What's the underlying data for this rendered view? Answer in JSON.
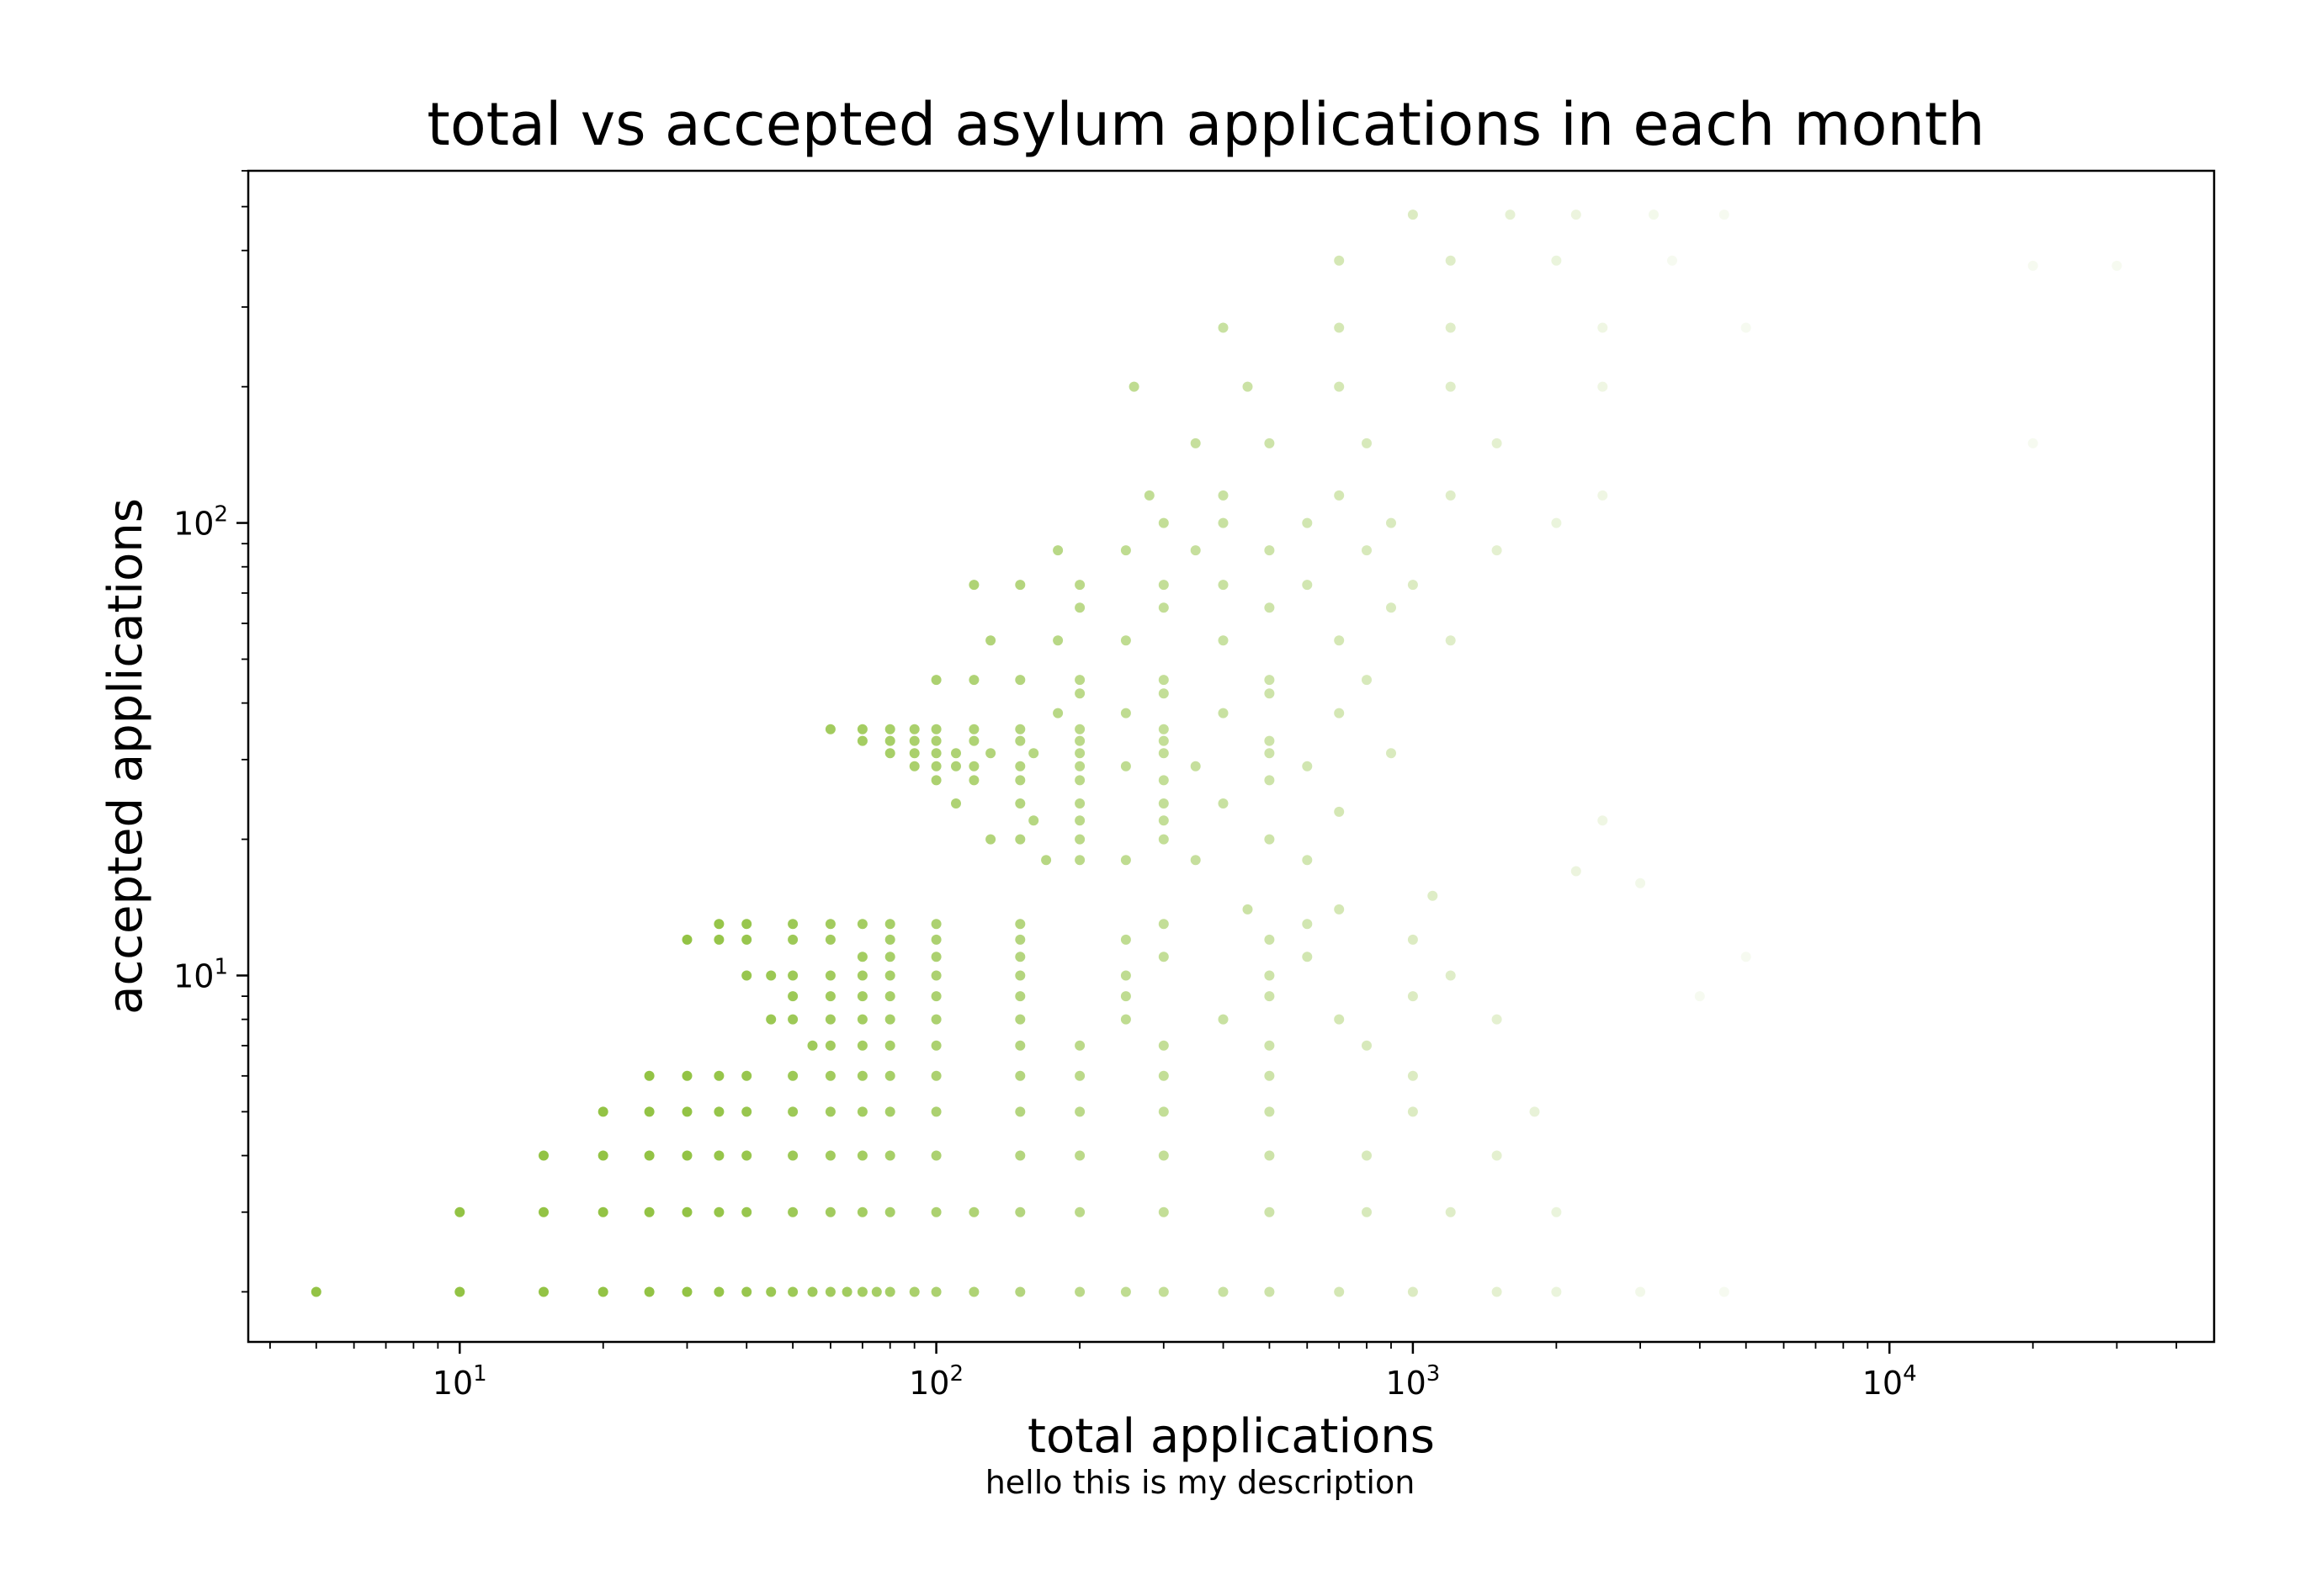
{
  "chart_data": {
    "type": "scatter",
    "title": "total vs accepted asylum applications in each month",
    "xlabel": "total applications",
    "ylabel": "accepted applications",
    "caption": "hello this is my description",
    "xscale": "log",
    "yscale": "log",
    "xlim": [
      3.6,
      48000
    ],
    "ylim": [
      1.55,
      600
    ],
    "xticks": [
      {
        "base": "10",
        "exp": "1",
        "value": 10
      },
      {
        "base": "10",
        "exp": "2",
        "value": 100
      },
      {
        "base": "10",
        "exp": "3",
        "value": 1000
      },
      {
        "base": "10",
        "exp": "4",
        "value": 10000
      }
    ],
    "yticks": [
      {
        "base": "10",
        "exp": "1",
        "value": 10
      },
      {
        "base": "10",
        "exp": "2",
        "value": 100
      }
    ],
    "grid": false,
    "legend": "none",
    "colors": {
      "marker": "#8dc03b",
      "axis": "#000000"
    },
    "point_opacity": "high for low totals, fading toward very faint for large totals",
    "series": [
      {
        "points": [
          [
            5,
            2
          ],
          [
            10,
            2
          ],
          [
            15,
            2
          ],
          [
            20,
            2
          ],
          [
            25,
            2
          ],
          [
            30,
            2
          ],
          [
            35,
            2
          ],
          [
            40,
            2
          ],
          [
            45,
            2
          ],
          [
            50,
            2
          ],
          [
            55,
            2
          ],
          [
            60,
            2
          ],
          [
            65,
            2
          ],
          [
            70,
            2
          ],
          [
            75,
            2
          ],
          [
            80,
            2
          ],
          [
            90,
            2
          ],
          [
            100,
            2
          ],
          [
            120,
            2
          ],
          [
            150,
            2
          ],
          [
            200,
            2
          ],
          [
            250,
            2
          ],
          [
            300,
            2
          ],
          [
            400,
            2
          ],
          [
            500,
            2
          ],
          [
            700,
            2
          ],
          [
            1000,
            2
          ],
          [
            1500,
            2
          ],
          [
            2000,
            2
          ],
          [
            3000,
            2
          ],
          [
            4500,
            2
          ],
          [
            10,
            3
          ],
          [
            15,
            3
          ],
          [
            20,
            3
          ],
          [
            25,
            3
          ],
          [
            30,
            3
          ],
          [
            35,
            3
          ],
          [
            40,
            3
          ],
          [
            50,
            3
          ],
          [
            60,
            3
          ],
          [
            70,
            3
          ],
          [
            80,
            3
          ],
          [
            100,
            3
          ],
          [
            120,
            3
          ],
          [
            150,
            3
          ],
          [
            200,
            3
          ],
          [
            300,
            3
          ],
          [
            500,
            3
          ],
          [
            800,
            3
          ],
          [
            1200,
            3
          ],
          [
            2000,
            3
          ],
          [
            15,
            4
          ],
          [
            20,
            4
          ],
          [
            25,
            4
          ],
          [
            30,
            4
          ],
          [
            35,
            4
          ],
          [
            40,
            4
          ],
          [
            50,
            4
          ],
          [
            60,
            4
          ],
          [
            70,
            4
          ],
          [
            80,
            4
          ],
          [
            100,
            4
          ],
          [
            150,
            4
          ],
          [
            200,
            4
          ],
          [
            300,
            4
          ],
          [
            500,
            4
          ],
          [
            800,
            4
          ],
          [
            1500,
            4
          ],
          [
            20,
            5
          ],
          [
            25,
            5
          ],
          [
            30,
            5
          ],
          [
            35,
            5
          ],
          [
            40,
            5
          ],
          [
            50,
            5
          ],
          [
            60,
            5
          ],
          [
            70,
            5
          ],
          [
            80,
            5
          ],
          [
            100,
            5
          ],
          [
            150,
            5
          ],
          [
            200,
            5
          ],
          [
            300,
            5
          ],
          [
            500,
            5
          ],
          [
            1000,
            5
          ],
          [
            1800,
            5
          ],
          [
            25,
            6
          ],
          [
            30,
            6
          ],
          [
            35,
            6
          ],
          [
            40,
            6
          ],
          [
            50,
            6
          ],
          [
            60,
            6
          ],
          [
            70,
            6
          ],
          [
            80,
            6
          ],
          [
            100,
            6
          ],
          [
            150,
            6
          ],
          [
            200,
            6
          ],
          [
            300,
            6
          ],
          [
            500,
            6
          ],
          [
            1000,
            6
          ],
          [
            55,
            7
          ],
          [
            60,
            7
          ],
          [
            70,
            7
          ],
          [
            80,
            7
          ],
          [
            100,
            7
          ],
          [
            150,
            7
          ],
          [
            200,
            7
          ],
          [
            300,
            7
          ],
          [
            500,
            7
          ],
          [
            800,
            7
          ],
          [
            45,
            8
          ],
          [
            50,
            8
          ],
          [
            60,
            8
          ],
          [
            70,
            8
          ],
          [
            80,
            8
          ],
          [
            100,
            8
          ],
          [
            150,
            8
          ],
          [
            250,
            8
          ],
          [
            400,
            8
          ],
          [
            700,
            8
          ],
          [
            1500,
            8
          ],
          [
            50,
            9
          ],
          [
            60,
            9
          ],
          [
            70,
            9
          ],
          [
            80,
            9
          ],
          [
            100,
            9
          ],
          [
            150,
            9
          ],
          [
            250,
            9
          ],
          [
            500,
            9
          ],
          [
            1000,
            9
          ],
          [
            4000,
            9
          ],
          [
            40,
            10
          ],
          [
            45,
            10
          ],
          [
            50,
            10
          ],
          [
            60,
            10
          ],
          [
            70,
            10
          ],
          [
            80,
            10
          ],
          [
            100,
            10
          ],
          [
            150,
            10
          ],
          [
            250,
            10
          ],
          [
            500,
            10
          ],
          [
            1200,
            10
          ],
          [
            70,
            11
          ],
          [
            80,
            11
          ],
          [
            100,
            11
          ],
          [
            150,
            11
          ],
          [
            300,
            11
          ],
          [
            600,
            11
          ],
          [
            5000,
            11
          ],
          [
            30,
            12
          ],
          [
            35,
            12
          ],
          [
            40,
            12
          ],
          [
            50,
            12
          ],
          [
            60,
            12
          ],
          [
            80,
            12
          ],
          [
            100,
            12
          ],
          [
            150,
            12
          ],
          [
            250,
            12
          ],
          [
            500,
            12
          ],
          [
            1000,
            12
          ],
          [
            35,
            13
          ],
          [
            40,
            13
          ],
          [
            50,
            13
          ],
          [
            60,
            13
          ],
          [
            70,
            13
          ],
          [
            80,
            13
          ],
          [
            100,
            13
          ],
          [
            150,
            13
          ],
          [
            300,
            13
          ],
          [
            600,
            13
          ],
          [
            450,
            14
          ],
          [
            700,
            14
          ],
          [
            1100,
            15
          ],
          [
            2200,
            17
          ],
          [
            3000,
            16
          ],
          [
            170,
            18
          ],
          [
            200,
            18
          ],
          [
            250,
            18
          ],
          [
            350,
            18
          ],
          [
            600,
            18
          ],
          [
            130,
            20
          ],
          [
            150,
            20
          ],
          [
            200,
            20
          ],
          [
            300,
            20
          ],
          [
            500,
            20
          ],
          [
            160,
            22
          ],
          [
            200,
            22
          ],
          [
            300,
            22
          ],
          [
            700,
            23
          ],
          [
            2500,
            22
          ],
          [
            110,
            24
          ],
          [
            150,
            24
          ],
          [
            200,
            24
          ],
          [
            300,
            24
          ],
          [
            400,
            24
          ],
          [
            100,
            27
          ],
          [
            120,
            27
          ],
          [
            150,
            27
          ],
          [
            200,
            27
          ],
          [
            300,
            27
          ],
          [
            500,
            27
          ],
          [
            90,
            29
          ],
          [
            100,
            29
          ],
          [
            110,
            29
          ],
          [
            120,
            29
          ],
          [
            150,
            29
          ],
          [
            200,
            29
          ],
          [
            250,
            29
          ],
          [
            350,
            29
          ],
          [
            600,
            29
          ],
          [
            80,
            31
          ],
          [
            90,
            31
          ],
          [
            100,
            31
          ],
          [
            110,
            31
          ],
          [
            130,
            31
          ],
          [
            160,
            31
          ],
          [
            200,
            31
          ],
          [
            300,
            31
          ],
          [
            500,
            31
          ],
          [
            900,
            31
          ],
          [
            70,
            33
          ],
          [
            80,
            33
          ],
          [
            90,
            33
          ],
          [
            100,
            33
          ],
          [
            120,
            33
          ],
          [
            150,
            33
          ],
          [
            200,
            33
          ],
          [
            300,
            33
          ],
          [
            500,
            33
          ],
          [
            60,
            35
          ],
          [
            70,
            35
          ],
          [
            80,
            35
          ],
          [
            90,
            35
          ],
          [
            100,
            35
          ],
          [
            120,
            35
          ],
          [
            150,
            35
          ],
          [
            200,
            35
          ],
          [
            300,
            35
          ],
          [
            180,
            38
          ],
          [
            250,
            38
          ],
          [
            400,
            38
          ],
          [
            700,
            38
          ],
          [
            200,
            42
          ],
          [
            300,
            42
          ],
          [
            500,
            42
          ],
          [
            100,
            45
          ],
          [
            120,
            45
          ],
          [
            150,
            45
          ],
          [
            200,
            45
          ],
          [
            300,
            45
          ],
          [
            500,
            45
          ],
          [
            800,
            45
          ],
          [
            130,
            55
          ],
          [
            180,
            55
          ],
          [
            250,
            55
          ],
          [
            400,
            55
          ],
          [
            700,
            55
          ],
          [
            1200,
            55
          ],
          [
            200,
            65
          ],
          [
            300,
            65
          ],
          [
            500,
            65
          ],
          [
            900,
            65
          ],
          [
            120,
            73
          ],
          [
            150,
            73
          ],
          [
            200,
            73
          ],
          [
            300,
            73
          ],
          [
            400,
            73
          ],
          [
            600,
            73
          ],
          [
            1000,
            73
          ],
          [
            180,
            87
          ],
          [
            250,
            87
          ],
          [
            350,
            87
          ],
          [
            500,
            87
          ],
          [
            800,
            87
          ],
          [
            1500,
            87
          ],
          [
            300,
            100
          ],
          [
            400,
            100
          ],
          [
            600,
            100
          ],
          [
            900,
            100
          ],
          [
            2000,
            100
          ],
          [
            280,
            115
          ],
          [
            400,
            115
          ],
          [
            700,
            115
          ],
          [
            1200,
            115
          ],
          [
            2500,
            115
          ],
          [
            350,
            150
          ],
          [
            500,
            150
          ],
          [
            800,
            150
          ],
          [
            1500,
            150
          ],
          [
            20000,
            150
          ],
          [
            260,
            200
          ],
          [
            450,
            200
          ],
          [
            700,
            200
          ],
          [
            1200,
            200
          ],
          [
            2500,
            200
          ],
          [
            400,
            270
          ],
          [
            700,
            270
          ],
          [
            1200,
            270
          ],
          [
            2500,
            270
          ],
          [
            5000,
            270
          ],
          [
            700,
            380
          ],
          [
            1200,
            380
          ],
          [
            2000,
            380
          ],
          [
            3500,
            380
          ],
          [
            20000,
            370
          ],
          [
            30000,
            370
          ],
          [
            1000,
            480
          ],
          [
            1600,
            480
          ],
          [
            2200,
            480
          ],
          [
            3200,
            480
          ],
          [
            4500,
            480
          ]
        ]
      }
    ]
  }
}
